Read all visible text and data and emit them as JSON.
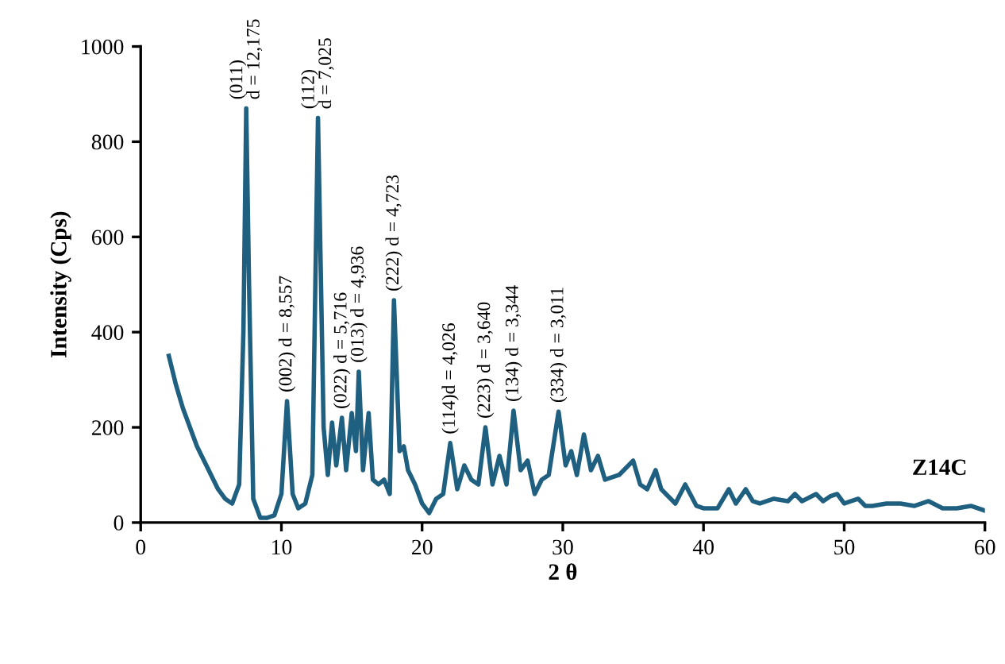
{
  "chart_data": {
    "type": "line",
    "xlabel": "2 θ",
    "ylabel": "Intensity (Cps)",
    "xlim": [
      0,
      60
    ],
    "xticks": [
      0,
      10,
      20,
      30,
      40,
      50,
      60
    ],
    "ylim": [
      0,
      1000
    ],
    "yticks": [
      0,
      200,
      400,
      600,
      800,
      1000
    ],
    "grid": false,
    "legend": false,
    "marker": "none",
    "line_style": "solid",
    "series": [
      {
        "name": "Z14C",
        "color": "#1f5f80",
        "x": [
          2,
          2.5,
          3,
          3.5,
          4,
          4.5,
          5,
          5.5,
          6,
          6.5,
          7,
          7.3,
          7.5,
          7.7,
          8,
          8.5,
          9,
          9.5,
          10,
          10.4,
          10.8,
          11.2,
          11.7,
          12.2,
          12.6,
          13,
          13.3,
          13.6,
          13.9,
          14.3,
          14.6,
          15,
          15.3,
          15.5,
          15.8,
          16.2,
          16.5,
          16.9,
          17.3,
          17.7,
          18,
          18.4,
          18.7,
          19,
          19.5,
          20,
          20.5,
          21,
          21.5,
          22,
          22.5,
          23,
          23.5,
          24,
          24.5,
          25,
          25.5,
          26,
          26.5,
          27,
          27.5,
          28,
          28.5,
          29,
          29.7,
          30.2,
          30.6,
          31,
          31.5,
          32,
          32.5,
          33,
          34,
          35,
          35.5,
          36,
          36.6,
          37,
          38,
          38.7,
          39.5,
          40,
          41,
          41.8,
          42.3,
          43,
          43.5,
          44,
          45,
          46,
          46.5,
          47,
          48,
          48.5,
          49,
          49.5,
          50,
          51,
          51.5,
          52,
          53,
          54,
          55,
          56,
          57,
          58,
          59,
          60
        ],
        "values": [
          350,
          290,
          240,
          200,
          160,
          130,
          100,
          70,
          50,
          40,
          80,
          400,
          870,
          500,
          50,
          10,
          10,
          15,
          60,
          255,
          60,
          30,
          40,
          100,
          850,
          200,
          100,
          210,
          120,
          220,
          110,
          230,
          150,
          317,
          110,
          230,
          90,
          80,
          90,
          60,
          467,
          150,
          160,
          110,
          80,
          40,
          20,
          50,
          60,
          167,
          70,
          120,
          90,
          80,
          200,
          80,
          140,
          80,
          235,
          110,
          130,
          60,
          90,
          100,
          233,
          120,
          150,
          100,
          185,
          110,
          140,
          90,
          100,
          130,
          80,
          70,
          110,
          70,
          40,
          80,
          35,
          30,
          30,
          70,
          40,
          70,
          45,
          40,
          50,
          45,
          60,
          45,
          60,
          45,
          55,
          60,
          40,
          50,
          35,
          35,
          40,
          40,
          35,
          45,
          30,
          30,
          35,
          25
        ]
      }
    ],
    "annotations": [
      {
        "text": "(011)\nd = 12,175",
        "x": 7.5,
        "y": 870
      },
      {
        "text": "(002) d = 8,557",
        "x": 10.4,
        "y": 255
      },
      {
        "text": "(112)\nd = 7,025",
        "x": 12.6,
        "y": 850
      },
      {
        "text": "(022) d = 5,716",
        "x": 14.3,
        "y": 220
      },
      {
        "text": "(013) d = 4,936",
        "x": 15.5,
        "y": 317
      },
      {
        "text": "(222) d = 4,723",
        "x": 18,
        "y": 467
      },
      {
        "text": "(114)d = 4,026",
        "x": 22,
        "y": 167
      },
      {
        "text": "(223) d = 3,640",
        "x": 24.5,
        "y": 200
      },
      {
        "text": "(134) d = 3,344",
        "x": 26.5,
        "y": 235
      },
      {
        "text": "(334) d = 3,011",
        "x": 29.7,
        "y": 233
      }
    ]
  }
}
